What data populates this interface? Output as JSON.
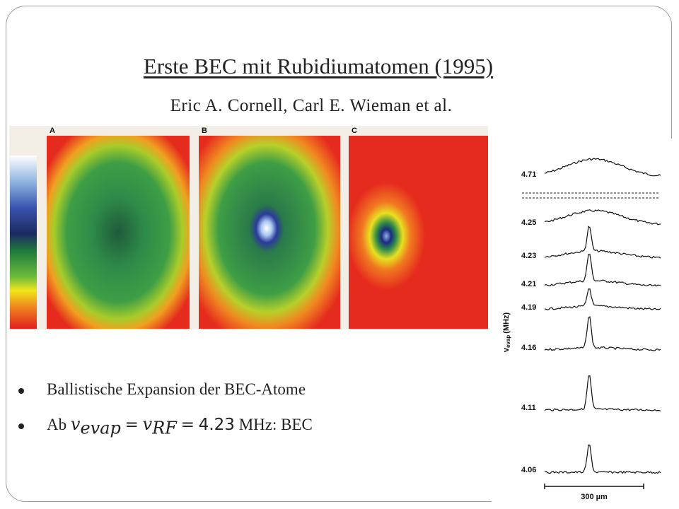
{
  "title": "Erste BEC mit Rubidiumatomen (1995)",
  "subtitle": "Eric A. Cornell, Carl E. Wieman et al.",
  "images": {
    "panels": [
      "A",
      "B",
      "C"
    ]
  },
  "profiles": {
    "axis_label": "v",
    "axis_sub": "evap",
    "axis_unit": "(MHz)",
    "labels": [
      "4.71",
      "4.25",
      "4.23",
      "4.21",
      "4.19",
      "4.16",
      "4.11",
      "4.06"
    ],
    "scale": "300 µm"
  },
  "bullets": [
    [
      "Ballistische Expansion der BEC-Atome"
    ],
    [
      "Ab",
      "𝑣",
      "evap",
      "=",
      "𝑣",
      "RF",
      "=",
      "4.23",
      "MHz: BEC"
    ]
  ]
}
